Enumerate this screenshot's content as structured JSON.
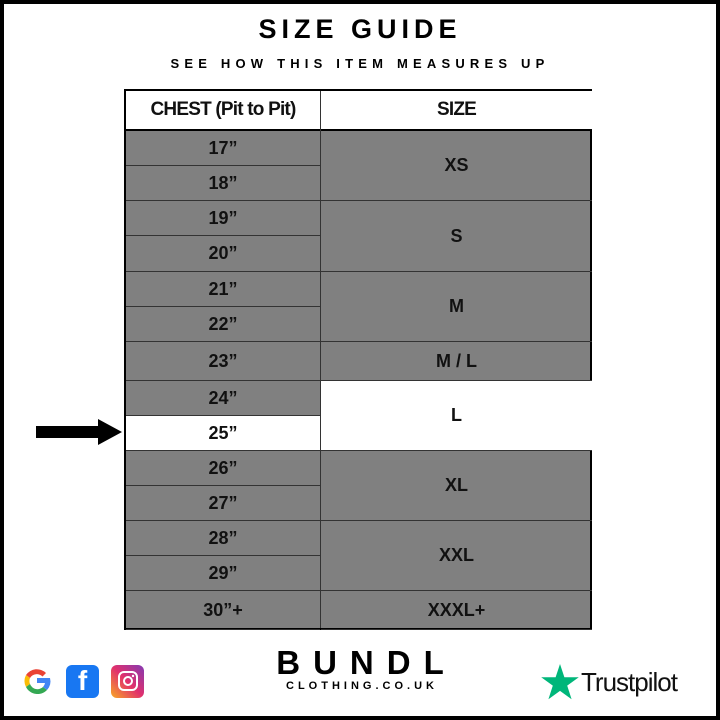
{
  "title": "SIZE GUIDE",
  "subtitle": "SEE HOW THIS ITEM MEASURES UP",
  "table": {
    "headers": [
      "CHEST (Pit to Pit)",
      "SIZE"
    ],
    "chest": [
      "17”",
      "18”",
      "19”",
      "20”",
      "21”",
      "22”",
      "23”",
      "24”",
      "25”",
      "26”",
      "27”",
      "28”",
      "29”",
      "30”+"
    ],
    "sizes": [
      {
        "label": "XS",
        "covers": [
          "17”",
          "18”"
        ]
      },
      {
        "label": "S",
        "covers": [
          "19”",
          "20”"
        ]
      },
      {
        "label": "M",
        "covers": [
          "21”",
          "22”"
        ]
      },
      {
        "label": "M / L",
        "covers": [
          "23”"
        ]
      },
      {
        "label": "L",
        "covers": [
          "24”",
          "25”"
        ]
      },
      {
        "label": "XL",
        "covers": [
          "26”",
          "27”"
        ]
      },
      {
        "label": "XXL",
        "covers": [
          "28”",
          "29”"
        ]
      },
      {
        "label": "XXXL+",
        "covers": [
          "30”+"
        ]
      }
    ],
    "highlighted_chest": "25”",
    "highlighted_size": "L",
    "colors": {
      "row_bg": "#808080",
      "highlight_bg": "#ffffff"
    }
  },
  "footer": {
    "brand": "BUNDL",
    "brand_sub": "CLOTHING.CO.UK",
    "social_icons": [
      "google-icon",
      "facebook-icon",
      "instagram-icon"
    ],
    "trustpilot": "Trustpilot"
  }
}
